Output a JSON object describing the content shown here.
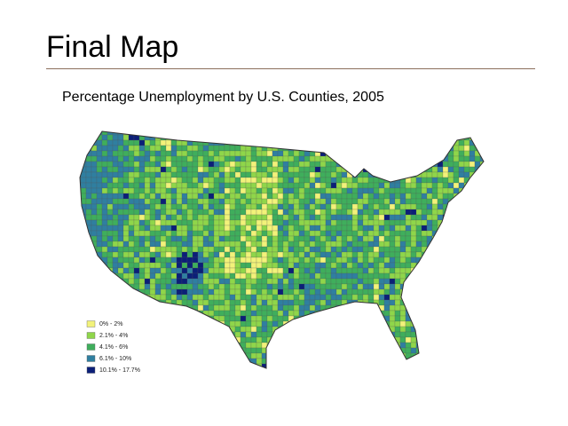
{
  "slide": {
    "title": "Final Map",
    "subtitle": "Percentage Unemployment by U.S. Counties, 2005"
  },
  "legend": [
    {
      "label": "0% - 2%",
      "color": "#f2f27a"
    },
    {
      "label": "2.1% - 4%",
      "color": "#8fd64a"
    },
    {
      "label": "4.1% - 6%",
      "color": "#3fae5c"
    },
    {
      "label": "6.1% - 10%",
      "color": "#2f7fa0"
    },
    {
      "label": "10.1% - 17.7%",
      "color": "#0b1f78"
    }
  ]
}
